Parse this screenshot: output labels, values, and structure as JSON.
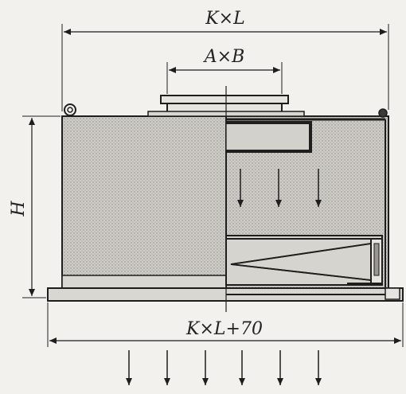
{
  "dimensions": {
    "top_width": "K×L",
    "opening": "A×B",
    "height": "H",
    "base_width": "K×L+70"
  },
  "colors": {
    "line": "#1e1e1e",
    "fill": "#c9c7c2",
    "background": "#f2f1ee"
  },
  "airflow_arrows": {
    "inner_count": 3,
    "outlet_count": 6
  }
}
